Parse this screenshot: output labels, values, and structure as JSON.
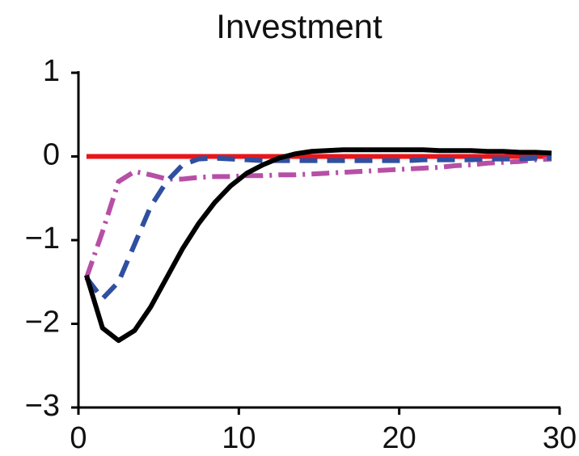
{
  "chart_data": {
    "type": "line",
    "title": "Investment",
    "x": [
      0.5,
      1.5,
      2.5,
      3.5,
      4.5,
      5.5,
      6.5,
      7.5,
      8.5,
      9.5,
      10.5,
      11.5,
      12.5,
      13.5,
      14.5,
      15.5,
      16.5,
      17.5,
      18.5,
      19.5,
      20.5,
      21.5,
      22.5,
      23.5,
      24.5,
      25.5,
      26.5,
      27.5,
      28.5,
      29.5
    ],
    "series": [
      {
        "color": "#e8161b",
        "dash": "solid",
        "values": [
          0,
          0,
          0,
          0,
          0,
          0,
          0,
          0,
          0,
          0,
          0,
          0,
          0,
          0,
          0,
          0,
          0,
          0,
          0,
          0,
          0,
          0,
          0,
          0,
          0,
          0,
          0,
          0,
          0,
          0
        ]
      },
      {
        "color": "#b74fa6",
        "dash": "dashdot",
        "values": [
          -1.45,
          -0.9,
          -0.3,
          -0.18,
          -0.22,
          -0.27,
          -0.27,
          -0.25,
          -0.24,
          -0.24,
          -0.23,
          -0.23,
          -0.22,
          -0.22,
          -0.21,
          -0.2,
          -0.19,
          -0.18,
          -0.17,
          -0.16,
          -0.15,
          -0.14,
          -0.13,
          -0.11,
          -0.1,
          -0.08,
          -0.07,
          -0.06,
          -0.04,
          -0.03
        ]
      },
      {
        "color": "#2f4fa0",
        "dash": "dashed",
        "values": [
          -1.45,
          -1.7,
          -1.5,
          -1.05,
          -0.6,
          -0.3,
          -0.1,
          -0.03,
          -0.02,
          -0.03,
          -0.04,
          -0.05,
          -0.05,
          -0.05,
          -0.05,
          -0.05,
          -0.05,
          -0.05,
          -0.05,
          -0.05,
          -0.05,
          -0.04,
          -0.04,
          -0.04,
          -0.04,
          -0.03,
          -0.03,
          -0.03,
          -0.02,
          -0.02
        ]
      },
      {
        "color": "#000000",
        "dash": "solid",
        "values": [
          -1.42,
          -2.05,
          -2.2,
          -2.08,
          -1.8,
          -1.45,
          -1.1,
          -0.8,
          -0.55,
          -0.35,
          -0.2,
          -0.1,
          -0.02,
          0.03,
          0.06,
          0.07,
          0.08,
          0.08,
          0.08,
          0.08,
          0.08,
          0.08,
          0.07,
          0.07,
          0.07,
          0.06,
          0.06,
          0.05,
          0.05,
          0.04
        ]
      }
    ],
    "xlim": [
      0,
      30
    ],
    "xticks": [
      0,
      10,
      20,
      30
    ],
    "ylim": [
      -3,
      1
    ],
    "yticks": [
      1,
      0,
      {
        "value": -1,
        "label": "−1"
      },
      {
        "value": -2,
        "label": "−2"
      },
      {
        "value": -3,
        "label": "−3"
      }
    ]
  }
}
